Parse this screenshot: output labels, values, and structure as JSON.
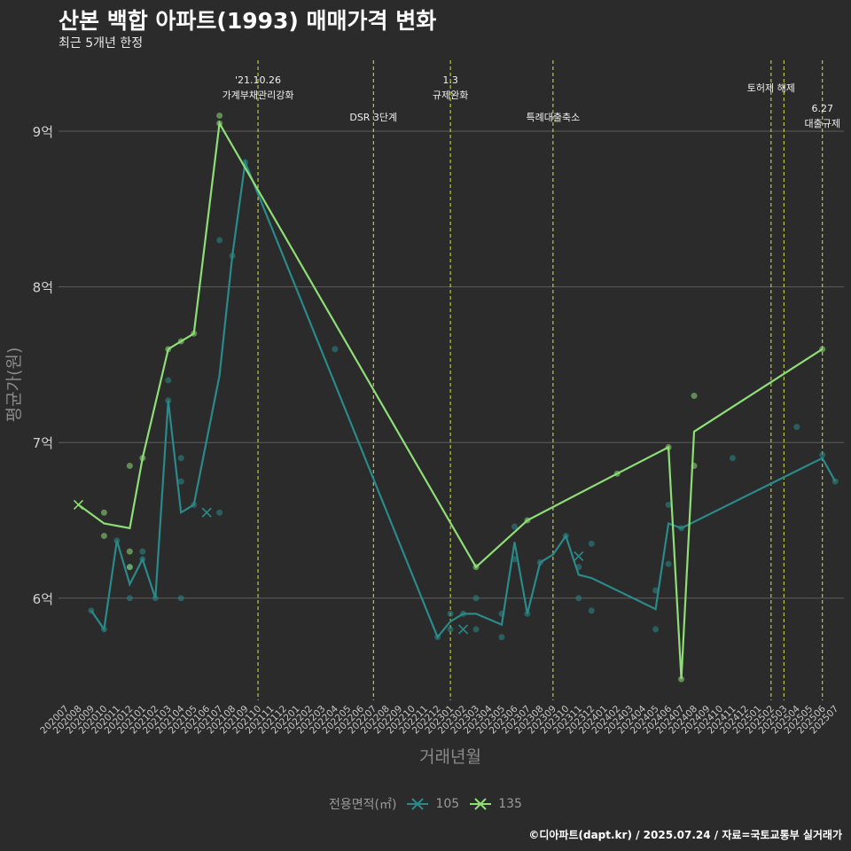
{
  "chart_data": {
    "type": "line",
    "title": "산본 백합 아파트(1993) 매매가격 변화",
    "subtitle": "최근 5개년 한정",
    "xlabel": "거래년월",
    "ylabel": "평균가(원)",
    "caption": "©디아파트(dapt.kr) / 2025.07.24 / 자료=국토교통부 실거래가",
    "legend_title": "전용면적(㎡)",
    "ylim": [
      5.3,
      9.4
    ],
    "yticks": [
      {
        "v": 6,
        "label": "6억"
      },
      {
        "v": 7,
        "label": "7억"
      },
      {
        "v": 8,
        "label": "8억"
      },
      {
        "v": 9,
        "label": "9억"
      }
    ],
    "categories": [
      "202007",
      "202008",
      "202009",
      "202010",
      "202011",
      "202012",
      "202101",
      "202102",
      "202103",
      "202104",
      "202105",
      "202106",
      "202107",
      "202108",
      "202109",
      "202110",
      "202111",
      "202112",
      "202201",
      "202202",
      "202203",
      "202204",
      "202205",
      "202206",
      "202207",
      "202208",
      "202209",
      "202210",
      "202211",
      "202212",
      "202301",
      "202302",
      "202303",
      "202304",
      "202305",
      "202306",
      "202307",
      "202308",
      "202309",
      "202310",
      "202311",
      "202312",
      "202401",
      "202402",
      "202403",
      "202404",
      "202405",
      "202406",
      "202407",
      "202408",
      "202409",
      "202410",
      "202411",
      "202412",
      "202501",
      "202502",
      "202503",
      "202504",
      "202505",
      "202506",
      "202507"
    ],
    "annotations": [
      {
        "month": "202110",
        "lines": [
          "'21.10.26",
          "가계부채관리강화"
        ],
        "row": "top"
      },
      {
        "month": "202207",
        "lines": [
          "DSR 3단계"
        ],
        "row": "mid"
      },
      {
        "month": "202301",
        "lines": [
          "1.3",
          "규제완화"
        ],
        "row": "top"
      },
      {
        "month": "202309",
        "lines": [
          "특례대출축소"
        ],
        "row": "mid"
      },
      {
        "month": "202502",
        "lines": [
          "토허제 해제"
        ],
        "row": "top2"
      },
      {
        "month": "202503",
        "lines": [],
        "row": "none"
      },
      {
        "month": "202506",
        "lines": [
          "6.27",
          "대출규제"
        ],
        "row": "side"
      }
    ],
    "series": [
      {
        "name": "105",
        "color": "#2a8a8a",
        "line": [
          [
            "202009",
            5.92
          ],
          [
            "202010",
            5.8
          ],
          [
            "202011",
            6.37
          ],
          [
            "202012",
            6.09
          ],
          [
            "202101",
            6.25
          ],
          [
            "202102",
            6.0
          ],
          [
            "202103",
            7.27
          ],
          [
            "202104",
            6.55
          ],
          [
            "202105",
            6.6
          ],
          [
            "202107",
            7.43
          ],
          [
            "202108",
            8.2
          ],
          [
            "202109",
            8.8
          ],
          [
            "202212",
            5.75
          ],
          [
            "202301",
            5.85
          ],
          [
            "202302",
            5.9
          ],
          [
            "202303",
            5.9
          ],
          [
            "202305",
            5.83
          ],
          [
            "202306",
            6.36
          ],
          [
            "202307",
            5.9
          ],
          [
            "202308",
            6.23
          ],
          [
            "202309",
            6.28
          ],
          [
            "202310",
            6.4
          ],
          [
            "202311",
            6.15
          ],
          [
            "202312",
            6.13
          ],
          [
            "202405",
            5.93
          ],
          [
            "202406",
            6.48
          ],
          [
            "202407",
            6.45
          ],
          [
            "202506",
            6.9
          ],
          [
            "202507",
            6.75
          ]
        ],
        "points": [
          [
            "202009",
            5.92
          ],
          [
            "202010",
            5.8
          ],
          [
            "202011",
            6.37
          ],
          [
            "202012",
            6.0
          ],
          [
            "202012",
            6.2
          ],
          [
            "202101",
            6.3
          ],
          [
            "202101",
            6.25
          ],
          [
            "202102",
            6.0
          ],
          [
            "202103",
            7.4
          ],
          [
            "202103",
            7.27
          ],
          [
            "202104",
            6.9
          ],
          [
            "202104",
            6.75
          ],
          [
            "202104",
            6.0
          ],
          [
            "202105",
            6.6
          ],
          [
            "202107",
            8.3
          ],
          [
            "202107",
            6.55
          ],
          [
            "202108",
            8.2
          ],
          [
            "202109",
            8.8
          ],
          [
            "202204",
            7.6
          ],
          [
            "202212",
            5.75
          ],
          [
            "202301",
            5.9
          ],
          [
            "202301",
            5.8
          ],
          [
            "202302",
            5.9
          ],
          [
            "202303",
            6.0
          ],
          [
            "202303",
            5.8
          ],
          [
            "202305",
            5.9
          ],
          [
            "202305",
            5.75
          ],
          [
            "202306",
            6.46
          ],
          [
            "202306",
            6.25
          ],
          [
            "202307",
            5.9
          ],
          [
            "202308",
            6.23
          ],
          [
            "202310",
            6.4
          ],
          [
            "202311",
            6.0
          ],
          [
            "202311",
            6.2
          ],
          [
            "202312",
            6.35
          ],
          [
            "202312",
            5.92
          ],
          [
            "202405",
            6.05
          ],
          [
            "202405",
            5.8
          ],
          [
            "202406",
            6.6
          ],
          [
            "202406",
            6.22
          ],
          [
            "202407",
            6.45
          ],
          [
            "202411",
            6.9
          ],
          [
            "202504",
            7.1
          ],
          [
            "202506",
            6.92
          ],
          [
            "202507",
            6.75
          ]
        ],
        "crosses": [
          [
            "202106",
            6.55
          ],
          [
            "202302",
            5.8
          ],
          [
            "202311",
            6.27
          ]
        ]
      },
      {
        "name": "135",
        "color": "#8ede76",
        "line": [
          [
            "202008",
            6.6
          ],
          [
            "202010",
            6.48
          ],
          [
            "202012",
            6.45
          ],
          [
            "202101",
            6.9
          ],
          [
            "202103",
            7.6
          ],
          [
            "202104",
            7.65
          ],
          [
            "202105",
            7.7
          ],
          [
            "202107",
            9.05
          ],
          [
            "202303",
            6.2
          ],
          [
            "202307",
            6.5
          ],
          [
            "202402",
            6.8
          ],
          [
            "202406",
            6.97
          ],
          [
            "202407",
            5.48
          ],
          [
            "202408",
            7.07
          ],
          [
            "202506",
            7.6
          ]
        ],
        "points": [
          [
            "202010",
            6.55
          ],
          [
            "202010",
            6.4
          ],
          [
            "202012",
            6.85
          ],
          [
            "202012",
            6.3
          ],
          [
            "202012",
            6.2
          ],
          [
            "202101",
            6.9
          ],
          [
            "202103",
            7.6
          ],
          [
            "202104",
            7.65
          ],
          [
            "202105",
            7.7
          ],
          [
            "202107",
            9.1
          ],
          [
            "202107",
            9.05
          ],
          [
            "202303",
            6.2
          ],
          [
            "202307",
            6.5
          ],
          [
            "202402",
            6.8
          ],
          [
            "202406",
            6.97
          ],
          [
            "202407",
            5.48
          ],
          [
            "202408",
            7.3
          ],
          [
            "202408",
            6.85
          ],
          [
            "202506",
            7.6
          ]
        ],
        "crosses": [
          [
            "202008",
            6.6
          ]
        ]
      }
    ]
  }
}
